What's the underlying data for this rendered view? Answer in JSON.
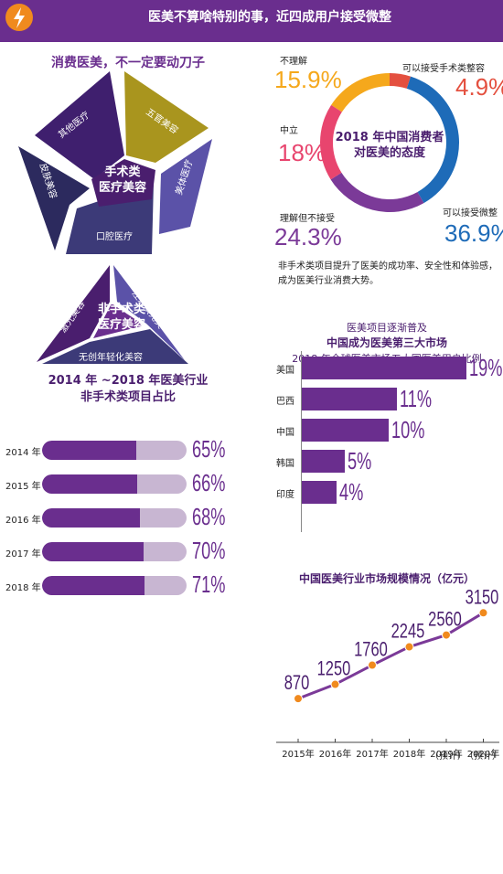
{
  "banner": {
    "title": "医美不算啥特别的事，近四成用户接受微整"
  },
  "left": {
    "section_title": "消费医美，不一定要动刀子",
    "surgical": {
      "center": [
        "手术类",
        "医疗美容"
      ],
      "items": [
        "其他医疗",
        "五官美容",
        "美体医疗",
        "口腔医疗",
        "皮肤美容"
      ]
    },
    "nonsurgical": {
      "center": [
        "非手术类",
        "医疗美容"
      ],
      "items": [
        "激光美容",
        "注射填充类",
        "无创年轻化美容"
      ]
    },
    "bars_title": [
      "2014 年 ~2018 年医美行业",
      "非手术类项目占比"
    ]
  },
  "right": {
    "donut_title": [
      "2018 年中国消费者",
      "对医美的态度"
    ],
    "donut_labels": {
      "buliJie": "不理解",
      "shoushu": "可以接受手术类整容",
      "zhongli": "中立",
      "buJieshou": "理解但不接受",
      "weizheng": "可以接受微整"
    },
    "donut_values": {
      "buliJie": "15.9%",
      "shoushu": "4.9%",
      "zhongli": "18%",
      "buJieshou": "24.3%",
      "weizheng": "36.9%"
    },
    "paragraph": [
      "非手术类项目提升了医美的成功率、安全性和体验感，",
      "成为医美行业消费大势。"
    ],
    "hbar_title": [
      "医美项目逐渐普及",
      "中国成为医美第三大市场",
      "2018 年全球医美市场五大国医美用户比例"
    ],
    "line_title": "中国医美行业市场规模情况（亿元）",
    "line_notes": [
      "（预计）",
      "（预计）"
    ]
  },
  "colors": {
    "purple": "#6a2e8e",
    "light": "#c8b6d2",
    "orange": "#f5a81c",
    "pink": "#e8456e",
    "blue": "#1e6bb8"
  },
  "chart_data": [
    {
      "type": "pie",
      "title": "2018 年中国消费者对医美的态度",
      "labels": [
        "不理解",
        "可以接受手术类整容",
        "可以接受微整",
        "理解但不接受",
        "中立"
      ],
      "values": [
        15.9,
        4.9,
        36.9,
        24.3,
        18
      ],
      "colors": [
        "#f5a81c",
        "#e4503f",
        "#1e6bb8",
        "#7b3a98",
        "#e8456e"
      ]
    },
    {
      "type": "bar",
      "title": "2014 年 ~2018 年医美行业非手术类项目占比",
      "categories": [
        "2014 年",
        "2015 年",
        "2016 年",
        "2017 年",
        "2018 年"
      ],
      "values": [
        65,
        66,
        68,
        70,
        71
      ],
      "value_labels": [
        "65%",
        "66%",
        "68%",
        "70%",
        "71%"
      ],
      "ylim": [
        0,
        100
      ]
    },
    {
      "type": "bar",
      "title": "2018 年全球医美市场五大国医美用户比例",
      "categories": [
        "美国",
        "巴西",
        "中国",
        "韩国",
        "印度"
      ],
      "values": [
        19,
        11,
        10,
        5,
        4
      ],
      "value_labels": [
        "19%",
        "11%",
        "10%",
        "5%",
        "4%"
      ]
    },
    {
      "type": "line",
      "title": "中国医美行业市场规模情况（亿元）",
      "x": [
        "2015年",
        "2016年",
        "2017年",
        "2018年",
        "2019年",
        "2020年"
      ],
      "values": [
        870,
        1250,
        1760,
        2245,
        2560,
        3150
      ],
      "value_labels": [
        "870",
        "1250",
        "1760",
        "2245",
        "2560",
        "3150"
      ]
    }
  ]
}
